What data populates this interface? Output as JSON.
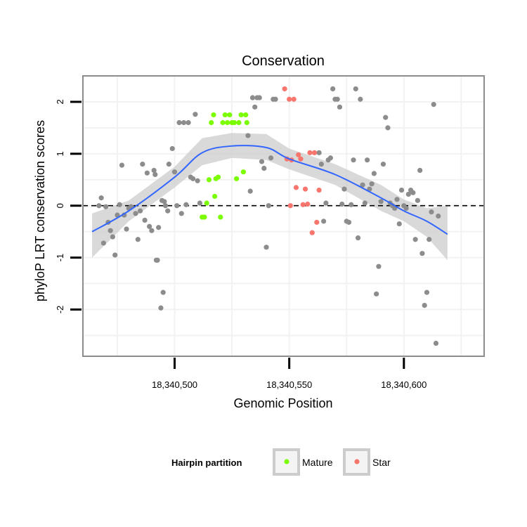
{
  "chart_data": {
    "type": "scatter",
    "title": "Conservation",
    "xlabel": "Genomic Position",
    "ylabel": "phyloP LRT conservation scores",
    "xlim": [
      18340460,
      18340635
    ],
    "ylim": [
      -2.9,
      2.5
    ],
    "x_ticks": [
      18340500,
      18340550,
      18340600
    ],
    "x_tick_labels": [
      "18,340,500",
      "18,340,550",
      "18,340,600"
    ],
    "y_ticks": [
      -2,
      -1,
      0,
      1,
      2
    ],
    "y_tick_labels": [
      "-2",
      "-1",
      "0",
      "1",
      "2"
    ],
    "reference_line": {
      "y": 0,
      "style": "dashed"
    },
    "legend": {
      "title": "Hairpin partition",
      "placement": "bottom",
      "entries": [
        {
          "label": "Mature",
          "color": "#7cfc00"
        },
        {
          "label": "Star",
          "color": "#f8766d"
        }
      ]
    },
    "colors": {
      "other": "#8c8c8c",
      "mature": "#7cfc00",
      "star": "#f8766d",
      "smooth": "#3366ff",
      "ribbon": "#cccccc"
    },
    "series": [
      {
        "name": "Other",
        "color": "#8c8c8c",
        "points": [
          [
            18340467,
            0.0
          ],
          [
            18340468,
            0.15
          ],
          [
            18340469,
            -0.72
          ],
          [
            18340470,
            -0.02
          ],
          [
            18340471,
            -0.32
          ],
          [
            18340472,
            -0.48
          ],
          [
            18340473,
            -0.6
          ],
          [
            18340474,
            -0.95
          ],
          [
            18340475,
            -0.18
          ],
          [
            18340476,
            0.02
          ],
          [
            18340477,
            0.78
          ],
          [
            18340478,
            -0.18
          ],
          [
            18340479,
            -0.45
          ],
          [
            18340480,
            -0.05
          ],
          [
            18340481,
            -0.02
          ],
          [
            18340483,
            -0.15
          ],
          [
            18340484,
            -0.65
          ],
          [
            18340485,
            -0.1
          ],
          [
            18340486,
            0.8
          ],
          [
            18340487,
            -0.28
          ],
          [
            18340488,
            0.63
          ],
          [
            18340489,
            -0.4
          ],
          [
            18340490,
            -0.48
          ],
          [
            18340491,
            0.68
          ],
          [
            18340491.5,
            0.6
          ],
          [
            18340492,
            -1.05
          ],
          [
            18340492.5,
            -1.05
          ],
          [
            18340493,
            -0.42
          ],
          [
            18340494,
            -1.97
          ],
          [
            18340494.5,
            0.1
          ],
          [
            18340495,
            -1.67
          ],
          [
            18340495.5,
            0.08
          ],
          [
            18340496,
            0.0
          ],
          [
            18340497,
            -0.1
          ],
          [
            18340497.5,
            0.8
          ],
          [
            18340499,
            1.1
          ],
          [
            18340500,
            0.65
          ],
          [
            18340501,
            0.0
          ],
          [
            18340502,
            1.6
          ],
          [
            18340503,
            -0.15
          ],
          [
            18340504,
            1.6
          ],
          [
            18340505,
            0.02
          ],
          [
            18340506,
            1.6
          ],
          [
            18340507,
            0.55
          ],
          [
            18340508,
            0.52
          ],
          [
            18340509,
            1.76
          ],
          [
            18340510,
            0.48
          ],
          [
            18340511,
            0.05
          ],
          [
            18340532,
            1.35
          ],
          [
            18340533,
            0.28
          ],
          [
            18340534,
            2.08
          ],
          [
            18340535,
            1.9
          ],
          [
            18340536,
            2.08
          ],
          [
            18340537,
            2.08
          ],
          [
            18340538,
            0.85
          ],
          [
            18340539,
            0.72
          ],
          [
            18340540,
            -0.8
          ],
          [
            18340541,
            0.0
          ],
          [
            18340542,
            0.92
          ],
          [
            18340543,
            2.05
          ],
          [
            18340544,
            2.05
          ],
          [
            18340563,
            1.02
          ],
          [
            18340564,
            0.8
          ],
          [
            18340565,
            -0.3
          ],
          [
            18340566,
            0.05
          ],
          [
            18340567,
            0.88
          ],
          [
            18340568,
            0.92
          ],
          [
            18340569,
            2.25
          ],
          [
            18340570,
            2.05
          ],
          [
            18340571,
            2.05
          ],
          [
            18340572,
            1.9
          ],
          [
            18340573,
            0.03
          ],
          [
            18340574,
            0.32
          ],
          [
            18340575,
            -0.3
          ],
          [
            18340576,
            -0.32
          ],
          [
            18340577,
            0.02
          ],
          [
            18340578,
            0.88
          ],
          [
            18340579,
            2.25
          ],
          [
            18340580,
            -0.62
          ],
          [
            18340581,
            2.05
          ],
          [
            18340582,
            0.4
          ],
          [
            18340583,
            0.05
          ],
          [
            18340584,
            0.88
          ],
          [
            18340585,
            0.32
          ],
          [
            18340586,
            0.42
          ],
          [
            18340587,
            0.62
          ],
          [
            18340588,
            -1.7
          ],
          [
            18340589,
            -1.17
          ],
          [
            18340590,
            0.08
          ],
          [
            18340591,
            0.8
          ],
          [
            18340592,
            1.7
          ],
          [
            18340593,
            1.5
          ],
          [
            18340594,
            0.05
          ],
          [
            18340595,
            0.0
          ],
          [
            18340596,
            -0.05
          ],
          [
            18340597,
            0.12
          ],
          [
            18340598,
            -0.35
          ],
          [
            18340599,
            0.3
          ],
          [
            18340600,
            0.0
          ],
          [
            18340601,
            -0.05
          ],
          [
            18340602,
            0.22
          ],
          [
            18340603,
            0.3
          ],
          [
            18340604,
            0.25
          ],
          [
            18340605,
            -0.65
          ],
          [
            18340606,
            0.1
          ],
          [
            18340607,
            0.68
          ],
          [
            18340608,
            -0.92
          ],
          [
            18340609,
            -1.92
          ],
          [
            18340610,
            -1.67
          ],
          [
            18340611,
            -0.65
          ],
          [
            18340612,
            -0.12
          ],
          [
            18340613,
            1.95
          ],
          [
            18340614,
            -2.65
          ],
          [
            18340615,
            -0.2
          ]
        ]
      },
      {
        "name": "Mature",
        "color": "#7cfc00",
        "points": [
          [
            18340512,
            -0.22
          ],
          [
            18340513,
            -0.22
          ],
          [
            18340514,
            0.05
          ],
          [
            18340515,
            0.5
          ],
          [
            18340516,
            1.6
          ],
          [
            18340517,
            1.75
          ],
          [
            18340517.5,
            0.18
          ],
          [
            18340518,
            0.52
          ],
          [
            18340519,
            0.55
          ],
          [
            18340520,
            -0.22
          ],
          [
            18340521,
            1.6
          ],
          [
            18340522,
            1.75
          ],
          [
            18340523,
            1.6
          ],
          [
            18340524,
            1.75
          ],
          [
            18340525,
            1.6
          ],
          [
            18340526,
            1.6
          ],
          [
            18340527,
            0.52
          ],
          [
            18340528,
            1.6
          ],
          [
            18340529,
            1.75
          ],
          [
            18340530,
            0.65
          ],
          [
            18340531,
            1.75
          ],
          [
            18340531.5,
            1.6
          ]
        ]
      },
      {
        "name": "Star",
        "color": "#f8766d",
        "points": [
          [
            18340548,
            2.25
          ],
          [
            18340549,
            0.9
          ],
          [
            18340550,
            2.05
          ],
          [
            18340550.5,
            0.0
          ],
          [
            18340551,
            0.88
          ],
          [
            18340552,
            2.05
          ],
          [
            18340553,
            0.35
          ],
          [
            18340554,
            0.98
          ],
          [
            18340555,
            0.9
          ],
          [
            18340556,
            0.02
          ],
          [
            18340557,
            0.32
          ],
          [
            18340558,
            0.03
          ],
          [
            18340559,
            1.02
          ],
          [
            18340560,
            -0.52
          ],
          [
            18340561,
            1.02
          ],
          [
            18340562,
            -0.32
          ],
          [
            18340563,
            0.3
          ]
        ]
      }
    ],
    "smooth_curve": {
      "x": [
        18340464,
        18340480,
        18340500,
        18340512,
        18340525,
        18340540,
        18340550,
        18340570,
        18340590,
        18340600,
        18340610,
        18340619
      ],
      "y": [
        -0.5,
        -0.1,
        0.55,
        1.02,
        1.15,
        1.12,
        0.9,
        0.6,
        0.15,
        -0.1,
        -0.3,
        -0.55
      ]
    },
    "ribbon": {
      "x": [
        18340464,
        18340480,
        18340500,
        18340512,
        18340525,
        18340540,
        18340550,
        18340570,
        18340590,
        18340600,
        18340610,
        18340619
      ],
      "upper": [
        -0.15,
        0.1,
        0.75,
        1.3,
        1.4,
        1.38,
        1.1,
        0.8,
        0.4,
        0.12,
        -0.05,
        0.0
      ],
      "lower": [
        -1.0,
        -0.3,
        0.35,
        0.78,
        0.92,
        0.88,
        0.7,
        0.4,
        -0.1,
        -0.3,
        -0.6,
        -1.05
      ]
    }
  }
}
